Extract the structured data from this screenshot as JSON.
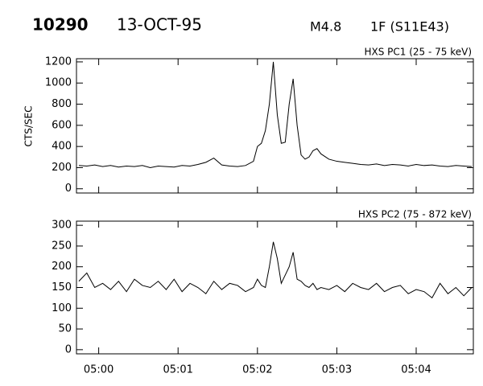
{
  "header": {
    "number": "10290",
    "date": "13-OCT-95",
    "class": "M4.8",
    "flare": "1F (S11E43)"
  },
  "chart_data": [
    {
      "type": "line",
      "title": "HXS PC1 (25 - 75 keV)",
      "y_label": "CTS/SEC",
      "color": "#000000",
      "x": [
        -0.25,
        -0.15,
        -0.05,
        0.05,
        0.15,
        0.25,
        0.35,
        0.45,
        0.55,
        0.65,
        0.75,
        0.85,
        0.95,
        1.05,
        1.15,
        1.25,
        1.35,
        1.45,
        1.55,
        1.65,
        1.75,
        1.85,
        1.95,
        2.0,
        2.05,
        2.1,
        2.15,
        2.2,
        2.25,
        2.3,
        2.35,
        2.4,
        2.45,
        2.5,
        2.55,
        2.6,
        2.65,
        2.7,
        2.75,
        2.8,
        2.9,
        3.0,
        3.1,
        3.2,
        3.3,
        3.4,
        3.5,
        3.6,
        3.7,
        3.8,
        3.9,
        4.0,
        4.1,
        4.2,
        4.3,
        4.4,
        4.5,
        4.6,
        4.7
      ],
      "values": [
        220,
        215,
        225,
        210,
        220,
        205,
        215,
        210,
        220,
        200,
        215,
        210,
        205,
        220,
        215,
        230,
        250,
        290,
        225,
        215,
        210,
        220,
        260,
        400,
        430,
        550,
        800,
        1200,
        700,
        430,
        440,
        800,
        1040,
        600,
        320,
        280,
        300,
        360,
        380,
        330,
        280,
        260,
        250,
        240,
        230,
        225,
        235,
        220,
        230,
        225,
        215,
        230,
        220,
        225,
        215,
        210,
        220,
        215,
        210
      ],
      "xlim": [
        -0.28,
        4.72
      ],
      "xticks": [
        {
          "value": 0,
          "label": "05:00"
        },
        {
          "value": 1,
          "label": "05:01"
        },
        {
          "value": 2,
          "label": "05:02"
        },
        {
          "value": 3,
          "label": "05:03"
        },
        {
          "value": 4,
          "label": "05:04"
        }
      ],
      "ylim": [
        -40,
        1230
      ],
      "yticks": [
        0,
        200,
        400,
        600,
        800,
        1000,
        1200
      ]
    },
    {
      "type": "line",
      "title": "HXS PC2 (75 - 872 keV)",
      "color": "#000000",
      "x": [
        -0.25,
        -0.15,
        -0.05,
        0.05,
        0.15,
        0.25,
        0.35,
        0.45,
        0.55,
        0.65,
        0.75,
        0.85,
        0.95,
        1.05,
        1.15,
        1.25,
        1.35,
        1.45,
        1.55,
        1.65,
        1.75,
        1.85,
        1.95,
        2.0,
        2.05,
        2.1,
        2.15,
        2.2,
        2.25,
        2.3,
        2.35,
        2.4,
        2.45,
        2.5,
        2.55,
        2.6,
        2.65,
        2.7,
        2.75,
        2.8,
        2.9,
        3.0,
        3.1,
        3.2,
        3.3,
        3.4,
        3.5,
        3.6,
        3.7,
        3.8,
        3.9,
        4.0,
        4.1,
        4.2,
        4.3,
        4.4,
        4.5,
        4.6,
        4.7
      ],
      "values": [
        165,
        185,
        150,
        160,
        145,
        165,
        140,
        170,
        155,
        150,
        165,
        145,
        170,
        140,
        160,
        150,
        135,
        165,
        145,
        160,
        155,
        140,
        150,
        170,
        155,
        150,
        200,
        260,
        220,
        160,
        180,
        200,
        235,
        170,
        165,
        155,
        150,
        160,
        145,
        150,
        145,
        155,
        140,
        160,
        150,
        145,
        160,
        140,
        150,
        155,
        135,
        145,
        140,
        125,
        160,
        135,
        150,
        130,
        150
      ],
      "xlim": [
        -0.28,
        4.72
      ],
      "xticks": [
        {
          "value": 0,
          "label": "05:00"
        },
        {
          "value": 1,
          "label": "05:01"
        },
        {
          "value": 2,
          "label": "05:02"
        },
        {
          "value": 3,
          "label": "05:03"
        },
        {
          "value": 4,
          "label": "05:04"
        }
      ],
      "ylim": [
        -10,
        310
      ],
      "yticks": [
        0,
        50,
        100,
        150,
        200,
        250,
        300
      ]
    }
  ]
}
